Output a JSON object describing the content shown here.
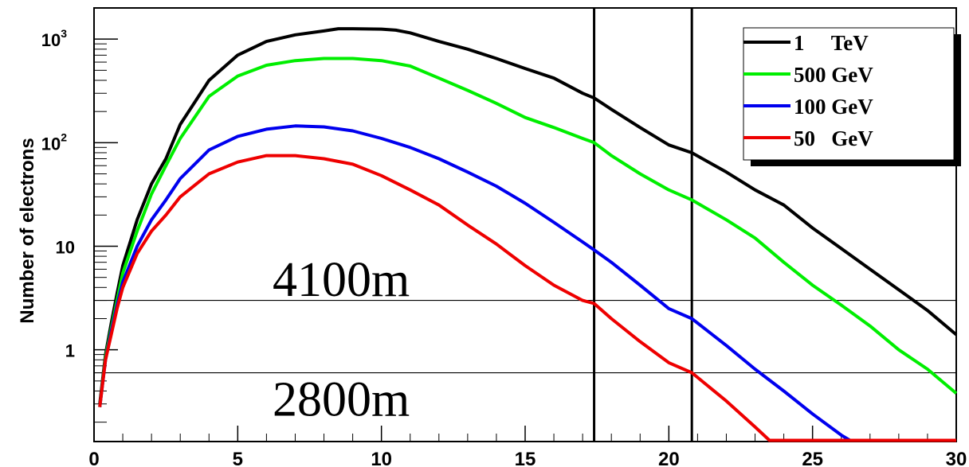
{
  "chart_data": {
    "type": "line",
    "title": "",
    "xlabel": "",
    "ylabel": "Number of electrons",
    "xlim": [
      0,
      30
    ],
    "ylim": [
      0.13,
      2000
    ],
    "yscale": "log",
    "x_ticks": [
      0,
      5,
      10,
      15,
      20,
      25,
      30
    ],
    "x_tick_labels": [
      "0",
      "5",
      "10",
      "15",
      "20",
      "25",
      "30"
    ],
    "y_ticks": [
      1,
      10,
      100,
      1000
    ],
    "y_tick_labels": [
      "1",
      "10",
      "10²",
      "10³"
    ],
    "legend_position": "top-right",
    "grid": false,
    "series": [
      {
        "name": "1     TeV",
        "color": "#000000",
        "x": [
          0.2,
          0.4,
          0.6,
          0.8,
          1,
          1.5,
          2,
          2.5,
          3,
          4,
          5,
          6,
          7,
          8,
          8.5,
          9,
          10,
          10.5,
          11,
          12,
          13,
          14,
          15,
          16,
          17,
          17.4,
          18,
          19,
          20,
          20.8,
          22,
          23,
          24,
          25,
          26,
          27,
          28,
          29,
          30
        ],
        "y": [
          0.3,
          0.9,
          1.8,
          3.5,
          6.5,
          18,
          40,
          70,
          150,
          400,
          700,
          950,
          1100,
          1200,
          1260,
          1260,
          1250,
          1220,
          1150,
          950,
          800,
          650,
          520,
          420,
          300,
          270,
          210,
          140,
          95,
          80,
          52,
          35,
          25,
          15,
          9.5,
          6,
          3.8,
          2.4,
          1.4
        ]
      },
      {
        "name": "500 GeV",
        "color": "#00ee00",
        "x": [
          0.2,
          0.4,
          0.6,
          0.8,
          1,
          1.5,
          2,
          2.5,
          3,
          4,
          5,
          6,
          7,
          8,
          9,
          10,
          11,
          12,
          13,
          14,
          15,
          16,
          17,
          17.4,
          18,
          19,
          20,
          20.8,
          22,
          23,
          24,
          25,
          26,
          27,
          28,
          29,
          30
        ],
        "y": [
          0.28,
          0.85,
          1.6,
          3,
          5.5,
          14,
          32,
          60,
          110,
          280,
          440,
          560,
          620,
          650,
          650,
          620,
          550,
          420,
          320,
          240,
          175,
          140,
          110,
          100,
          75,
          50,
          35,
          28,
          18,
          12,
          7,
          4.2,
          2.7,
          1.7,
          1,
          0.65,
          0.38
        ]
      },
      {
        "name": "100 GeV",
        "color": "#0000ee",
        "x": [
          0.2,
          0.4,
          0.6,
          0.8,
          1,
          1.5,
          2,
          2.5,
          3,
          4,
          5,
          6,
          7,
          8,
          9,
          10,
          11,
          12,
          13,
          14,
          15,
          16,
          17,
          17.4,
          18,
          19,
          20,
          20.8,
          22,
          23,
          24,
          25,
          26,
          26.3,
          27,
          28,
          29,
          30
        ],
        "y": [
          0.28,
          0.8,
          1.5,
          2.7,
          4.5,
          10,
          18,
          28,
          45,
          85,
          115,
          135,
          145,
          142,
          130,
          110,
          90,
          70,
          52,
          38,
          26,
          17,
          11,
          9.2,
          7,
          4.2,
          2.5,
          2,
          1.1,
          0.65,
          0.4,
          0.24,
          0.15,
          0.13,
          0.13,
          0.13,
          0.13,
          0.13
        ]
      },
      {
        "name": "50   GeV",
        "color": "#ee0000",
        "x": [
          0.2,
          0.4,
          0.6,
          0.8,
          1,
          1.5,
          2,
          2.5,
          3,
          4,
          5,
          6,
          7,
          8,
          9,
          10,
          11,
          12,
          13,
          14,
          15,
          16,
          17,
          17.4,
          18,
          19,
          20,
          20.8,
          22,
          23,
          23.5,
          24,
          25,
          26,
          27,
          28,
          29,
          30
        ],
        "y": [
          0.28,
          0.8,
          1.4,
          2.5,
          4,
          8.5,
          14,
          20,
          30,
          50,
          65,
          75,
          75,
          70,
          62,
          48,
          35,
          25,
          16,
          10.5,
          6.5,
          4.2,
          3,
          2.8,
          2,
          1.2,
          0.75,
          0.6,
          0.32,
          0.18,
          0.13,
          0.13,
          0.13,
          0.13,
          0.13,
          0.13,
          0.13,
          0.13
        ]
      }
    ],
    "vertical_lines": [
      17.4,
      20.8
    ],
    "horizontal_lines": [
      3,
      0.6
    ],
    "annotations": [
      {
        "text": "4100m",
        "x": 8.6,
        "y": 3.3
      },
      {
        "text": "2800m",
        "x": 8.6,
        "y": 0.23
      }
    ]
  }
}
